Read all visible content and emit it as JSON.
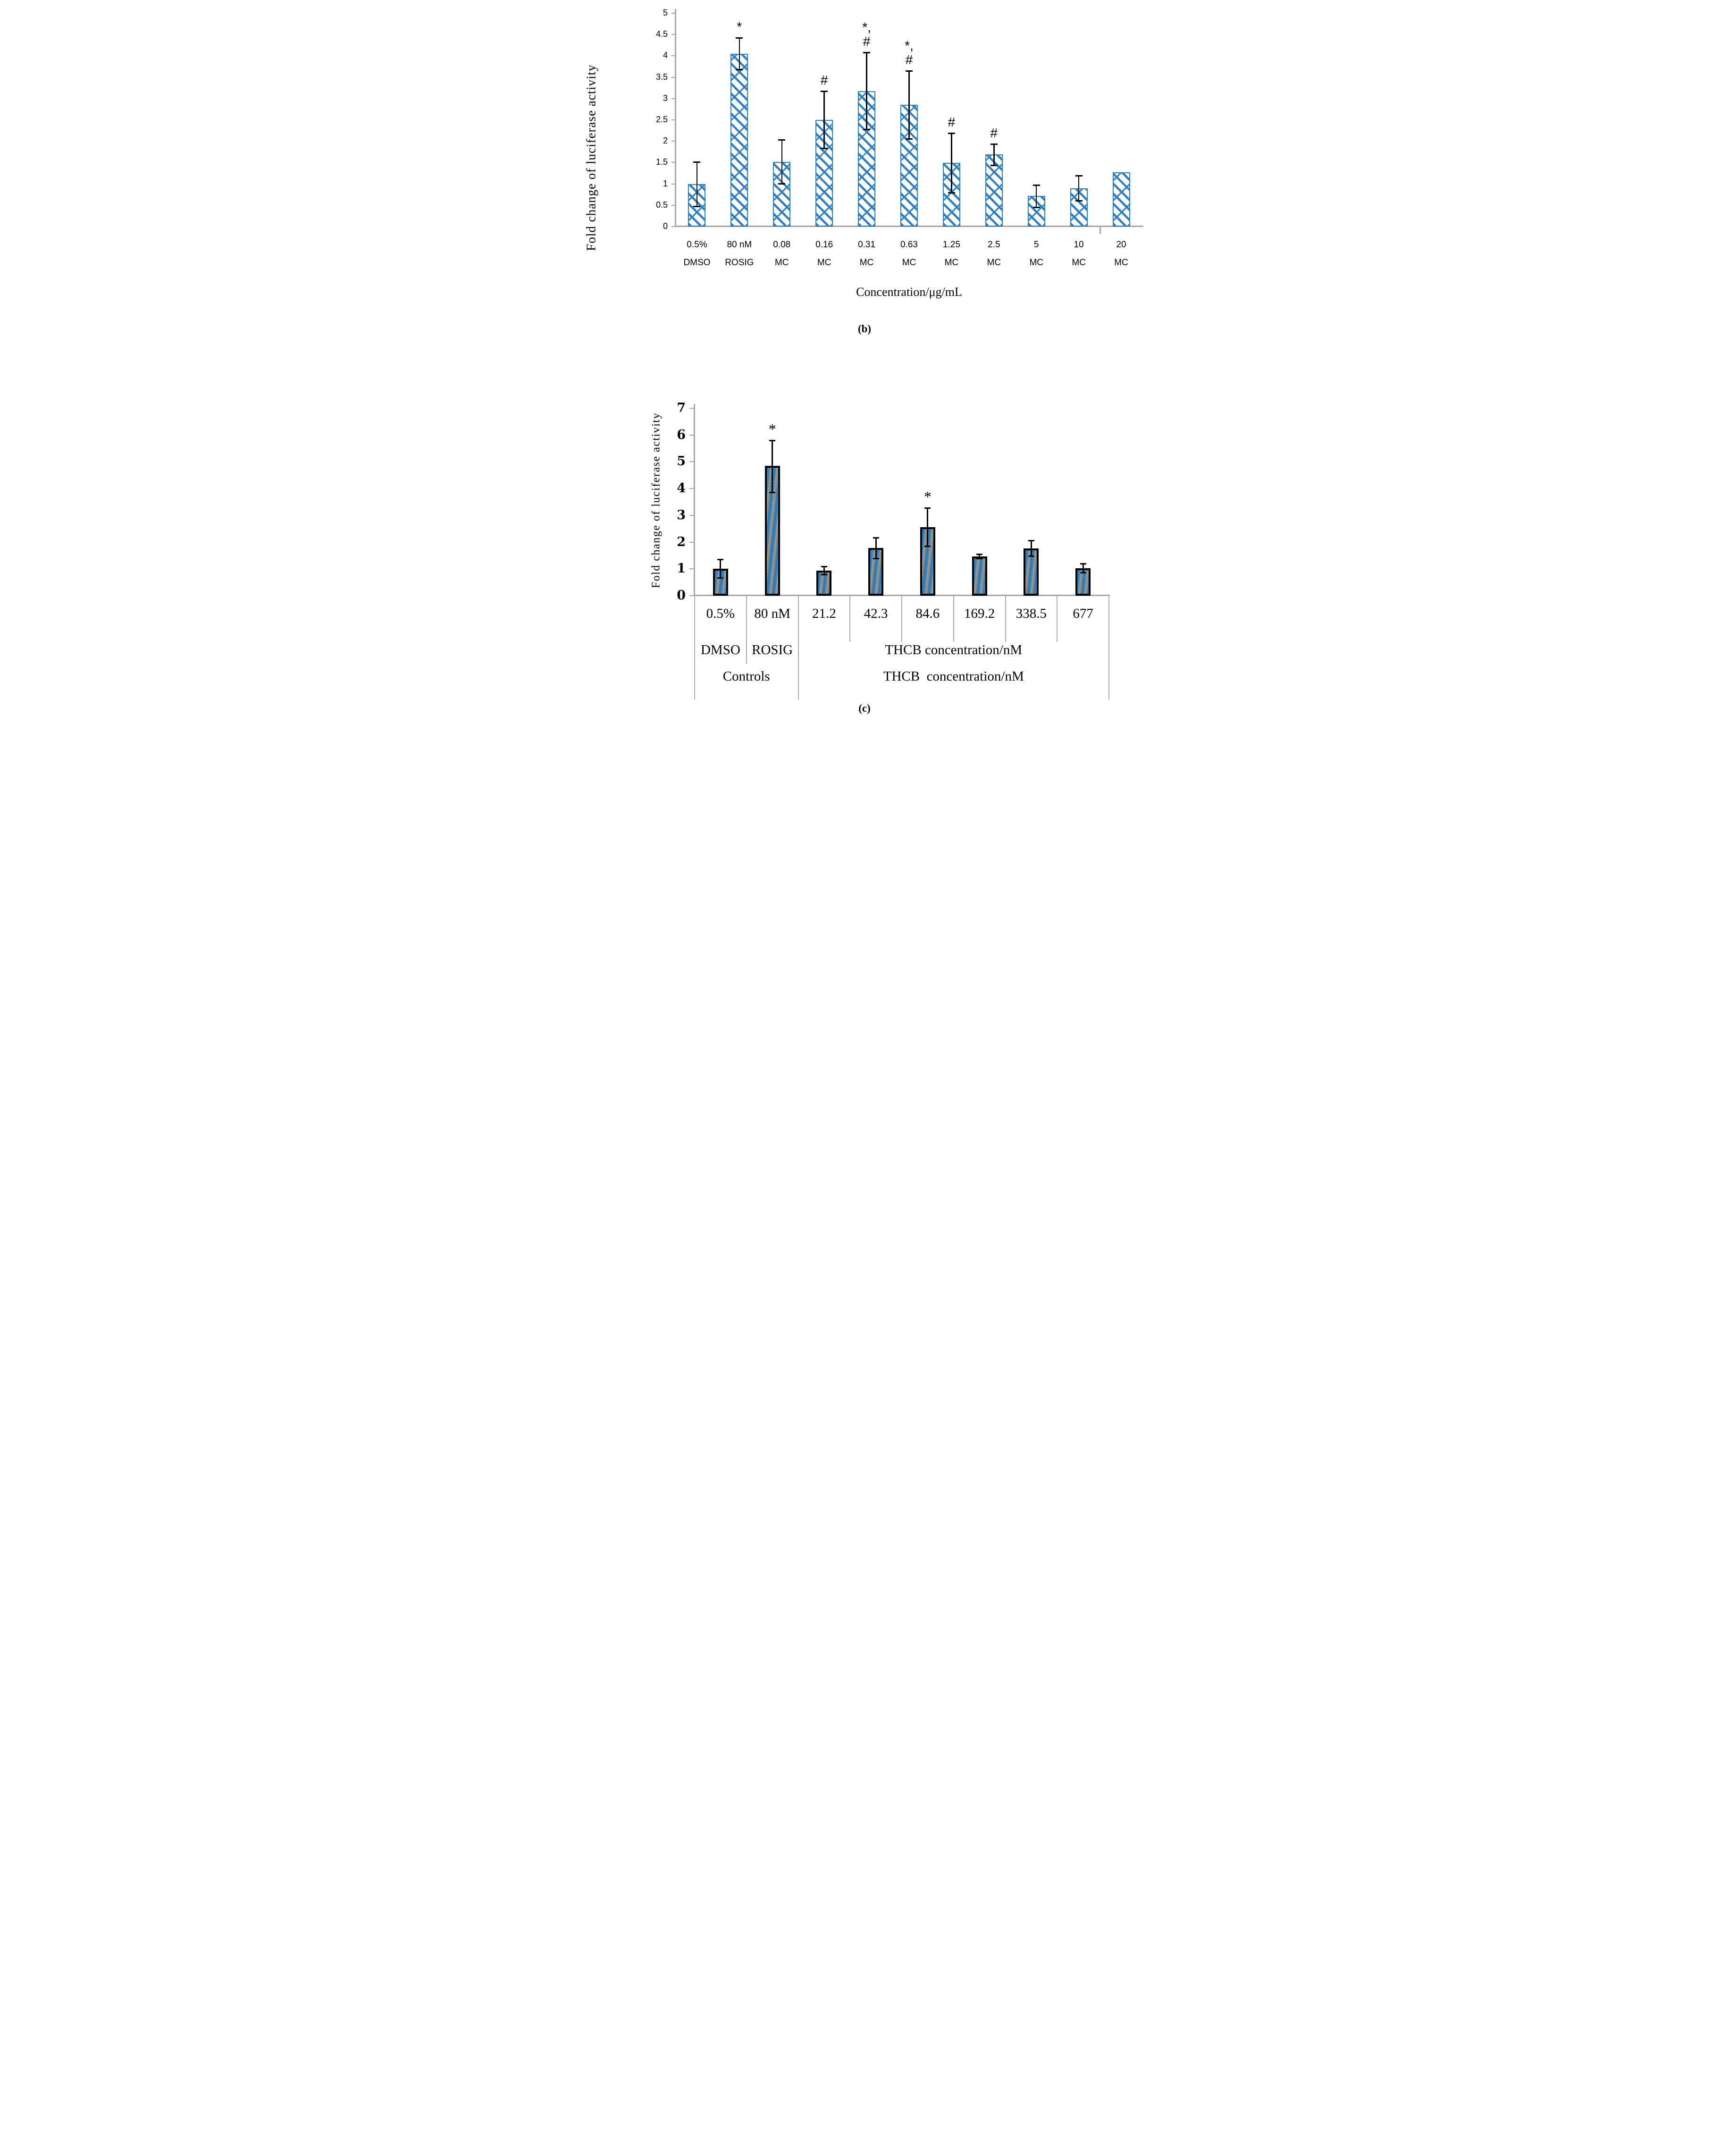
{
  "page": {
    "background": "#ffffff"
  },
  "colors": {
    "bar_b_outline_blue": "#2E7FC1",
    "bar_c_blue": "#1B74B8",
    "bar_c_gray": "#94938C",
    "bar_c_border": "#000000",
    "axis_gray": "#A6A6A6",
    "table_line_gray": "#ABABAB",
    "error_bar_black": "#000000",
    "text_black": "#000000"
  },
  "chart_data": [
    {
      "id": "b",
      "type": "bar",
      "ylabel": "Fold change of luciferase activity",
      "xlabel": "Concentration/μg/mL",
      "caption": "(b)",
      "ylim": [
        0,
        5
      ],
      "ytick_step": 0.5,
      "yticks": [
        "0",
        "0.5",
        "1",
        "1.5",
        "2",
        "2.5",
        "3",
        "3.5",
        "4",
        "4.5",
        "5"
      ],
      "categories_line1": [
        "0.5%",
        "80 nM",
        "0.08",
        "0.16",
        "0.31",
        "0.63",
        "1.25",
        "2.5",
        "5",
        "10",
        "20"
      ],
      "categories_line2": [
        "DMSO",
        "ROSIG",
        "MC",
        "MC",
        "MC",
        "MC",
        "MC",
        "MC",
        "MC",
        "MC",
        "MC"
      ],
      "values": [
        1.0,
        4.05,
        1.51,
        2.5,
        3.17,
        2.85,
        1.49,
        1.69,
        0.72,
        0.9,
        1.27
      ],
      "err_lo": [
        0.46,
        3.67,
        1.0,
        1.83,
        2.27,
        2.05,
        0.78,
        1.43,
        0.44,
        0.6,
        null
      ],
      "err_hi": [
        1.52,
        4.43,
        2.03,
        3.17,
        4.08,
        3.65,
        2.19,
        1.94,
        0.97,
        1.2,
        null
      ],
      "sig_markers": [
        "",
        "*",
        "",
        "#",
        "*,\n#",
        "*,\n#",
        "#",
        "#",
        "",
        "",
        ""
      ],
      "grid": false,
      "legend": "none"
    },
    {
      "id": "c",
      "type": "bar",
      "ylabel": "Fold change of luciferase activity",
      "caption": "(c)",
      "ylim": [
        0,
        7
      ],
      "ytick_step": 1,
      "yticks": [
        "0",
        "1",
        "2",
        "3",
        "4",
        "5",
        "6",
        "7"
      ],
      "categories": [
        "0.5%",
        "80 nM",
        "21.2",
        "42.3",
        "84.6",
        "169.2",
        "338.5",
        "677"
      ],
      "axis_table": {
        "row2_cells": [
          {
            "label": "DMSO",
            "start": 0,
            "span": 1
          },
          {
            "label": "ROSIG",
            "start": 1,
            "span": 1
          },
          {
            "label": "THCB concentration/nM",
            "start": 2,
            "span": 6
          }
        ],
        "row3_cells": [
          {
            "label": "Controls",
            "start": 0,
            "span": 2
          },
          {
            "label": "THCB  concentration/nM",
            "start": 2,
            "span": 6
          }
        ]
      },
      "values": [
        1.0,
        4.85,
        0.93,
        1.78,
        2.56,
        1.46,
        1.77,
        1.03
      ],
      "err_lo": [
        0.66,
        3.85,
        0.77,
        1.37,
        1.83,
        1.38,
        1.47,
        0.85
      ],
      "err_hi": [
        1.35,
        5.8,
        1.09,
        2.17,
        3.28,
        1.55,
        2.06,
        1.2
      ],
      "sig_markers": [
        "",
        "*",
        "",
        "",
        "*",
        "",
        "",
        ""
      ],
      "grid": false,
      "legend": "none"
    }
  ]
}
